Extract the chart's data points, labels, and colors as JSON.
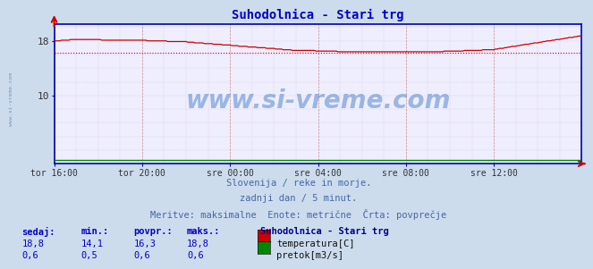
{
  "title": "Suhodolnica - Stari trg",
  "title_color": "#0000cc",
  "bg_color": "#ccdcec",
  "plot_bg_color": "#eeeeff",
  "grid_color_minor": "#ddaaaa",
  "grid_color_major": "#cc8888",
  "xlabel_ticks": [
    "tor 16:00",
    "tor 20:00",
    "sre 00:00",
    "sre 04:00",
    "sre 08:00",
    "sre 12:00"
  ],
  "xlabel_tick_positions": [
    0,
    48,
    96,
    144,
    192,
    240
  ],
  "ylabel_ticks": [
    10,
    18
  ],
  "ylim": [
    0,
    20.5
  ],
  "xlim": [
    0,
    288
  ],
  "avg_temp": 16.3,
  "temp_color": "#cc0000",
  "flow_color": "#008800",
  "avg_line_color": "#cc0000",
  "watermark": "www.si-vreme.com",
  "watermark_color": "#5588cc",
  "subtitle1": "Slovenija / reke in morje.",
  "subtitle2": "zadnji dan / 5 minut.",
  "subtitle3": "Meritve: maksimalne  Enote: metrične  Črta: povprečje",
  "subtitle_color": "#4466aa",
  "legend_title": "Suhodolnica - Stari trg",
  "legend_title_color": "#000088",
  "legend_items": [
    {
      "label": "temperatura[C]",
      "color": "#cc0000"
    },
    {
      "label": "pretok[m3/s]",
      "color": "#008800"
    }
  ],
  "stats_headers": [
    "sedaj:",
    "min.:",
    "povpr.:",
    "maks.:"
  ],
  "stats_temp": [
    "18,8",
    "14,1",
    "16,3",
    "18,8"
  ],
  "stats_flow": [
    "0,6",
    "0,5",
    "0,6",
    "0,6"
  ],
  "stats_color": "#0000cc",
  "border_color": "#0000bb",
  "arrow_color": "#cc0000",
  "side_watermark": "www.si-vreme.com",
  "side_watermark_color": "#5577aa"
}
